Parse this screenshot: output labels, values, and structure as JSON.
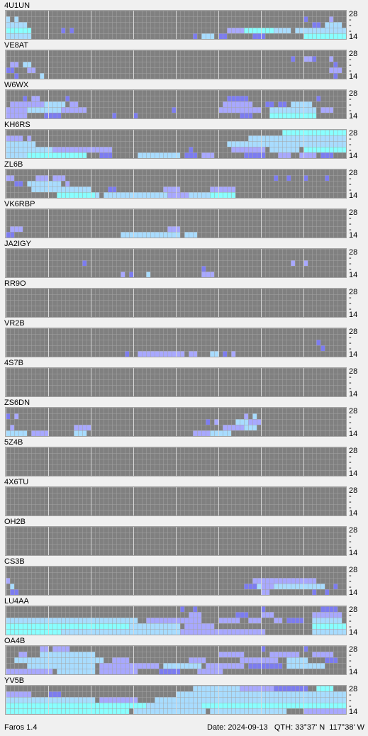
{
  "panels": [
    {
      "name": "4U1UN",
      "runs": [
        [
          1,
          0,
          0,
          3
        ],
        [
          1,
          2,
          2,
          3
        ],
        [
          2,
          0,
          4,
          3
        ],
        [
          3,
          0,
          5,
          4
        ],
        [
          4,
          0,
          5,
          3
        ],
        [
          3,
          13,
          13,
          1
        ],
        [
          3,
          15,
          15,
          1
        ],
        [
          4,
          44,
          44,
          1
        ],
        [
          4,
          46,
          48,
          3
        ],
        [
          4,
          50,
          51,
          1
        ],
        [
          3,
          52,
          55,
          2
        ],
        [
          3,
          56,
          62,
          4
        ],
        [
          3,
          63,
          66,
          3
        ],
        [
          4,
          58,
          60,
          1
        ],
        [
          3,
          68,
          79,
          3
        ],
        [
          4,
          70,
          79,
          4
        ],
        [
          2,
          72,
          73,
          1
        ],
        [
          2,
          75,
          78,
          3
        ],
        [
          1,
          70,
          70,
          1
        ],
        [
          1,
          76,
          76,
          2
        ]
      ]
    },
    {
      "name": "VE8AT",
      "runs": [
        [
          2,
          1,
          2,
          2
        ],
        [
          2,
          4,
          5,
          3
        ],
        [
          3,
          0,
          1,
          1
        ],
        [
          3,
          5,
          6,
          2
        ],
        [
          4,
          2,
          2,
          1
        ],
        [
          4,
          8,
          8,
          3
        ],
        [
          1,
          67,
          67,
          1
        ],
        [
          1,
          70,
          71,
          2
        ],
        [
          1,
          72,
          72,
          1
        ],
        [
          1,
          76,
          76,
          2
        ],
        [
          2,
          77,
          77,
          1
        ],
        [
          3,
          76,
          78,
          2
        ],
        [
          4,
          77,
          77,
          1
        ]
      ]
    },
    {
      "name": "W6WX",
      "runs": [
        [
          1,
          4,
          4,
          1
        ],
        [
          1,
          6,
          7,
          2
        ],
        [
          2,
          1,
          8,
          2
        ],
        [
          2,
          9,
          13,
          3
        ],
        [
          3,
          0,
          18,
          2
        ],
        [
          3,
          5,
          12,
          3
        ],
        [
          4,
          0,
          4,
          2
        ],
        [
          4,
          9,
          12,
          1
        ],
        [
          1,
          14,
          14,
          1
        ],
        [
          2,
          15,
          16,
          2
        ],
        [
          4,
          25,
          25,
          1
        ],
        [
          4,
          30,
          30,
          1
        ],
        [
          3,
          39,
          39,
          1
        ],
        [
          1,
          52,
          56,
          1
        ],
        [
          2,
          51,
          57,
          2
        ],
        [
          3,
          50,
          59,
          2
        ],
        [
          4,
          55,
          57,
          1
        ],
        [
          2,
          61,
          62,
          1
        ],
        [
          2,
          64,
          65,
          1
        ],
        [
          2,
          67,
          71,
          3
        ],
        [
          3,
          62,
          72,
          3
        ],
        [
          4,
          62,
          72,
          4
        ],
        [
          3,
          74,
          76,
          2
        ],
        [
          1,
          73,
          73,
          1
        ]
      ]
    },
    {
      "name": "KH6RS",
      "runs": [
        [
          1,
          0,
          3,
          2
        ],
        [
          1,
          5,
          5,
          2
        ],
        [
          2,
          0,
          6,
          3
        ],
        [
          3,
          0,
          10,
          3
        ],
        [
          3,
          11,
          24,
          2
        ],
        [
          4,
          5,
          18,
          4
        ],
        [
          4,
          0,
          4,
          3
        ],
        [
          4,
          22,
          24,
          1
        ],
        [
          4,
          31,
          40,
          3
        ],
        [
          4,
          42,
          44,
          1
        ],
        [
          3,
          43,
          43,
          1
        ],
        [
          4,
          46,
          48,
          2
        ],
        [
          0,
          65,
          79,
          4
        ],
        [
          1,
          57,
          79,
          3
        ],
        [
          2,
          52,
          79,
          3
        ],
        [
          3,
          53,
          60,
          2
        ],
        [
          3,
          62,
          68,
          3
        ],
        [
          3,
          70,
          79,
          4
        ],
        [
          4,
          56,
          60,
          1
        ],
        [
          4,
          64,
          66,
          2
        ],
        [
          4,
          69,
          72,
          2
        ],
        [
          4,
          74,
          76,
          1
        ]
      ]
    },
    {
      "name": "ZL6B",
      "runs": [
        [
          1,
          0,
          1,
          2
        ],
        [
          1,
          7,
          9,
          2
        ],
        [
          1,
          11,
          13,
          2
        ],
        [
          2,
          2,
          3,
          1
        ],
        [
          2,
          5,
          12,
          3
        ],
        [
          2,
          14,
          14,
          2
        ],
        [
          3,
          6,
          19,
          3
        ],
        [
          4,
          12,
          20,
          4
        ],
        [
          4,
          21,
          21,
          3
        ],
        [
          4,
          23,
          47,
          3
        ],
        [
          3,
          24,
          25,
          1
        ],
        [
          3,
          37,
          40,
          2
        ],
        [
          4,
          38,
          42,
          2
        ],
        [
          3,
          48,
          53,
          2
        ],
        [
          4,
          48,
          53,
          4
        ],
        [
          1,
          63,
          63,
          1
        ],
        [
          1,
          66,
          66,
          1
        ],
        [
          1,
          70,
          70,
          1
        ],
        [
          1,
          75,
          75,
          1
        ]
      ]
    },
    {
      "name": "VK6RBP",
      "runs": [
        [
          3,
          1,
          3,
          2
        ],
        [
          4,
          0,
          1,
          1
        ],
        [
          4,
          27,
          30,
          3
        ],
        [
          4,
          31,
          40,
          3
        ],
        [
          3,
          38,
          40,
          2
        ],
        [
          4,
          42,
          44,
          3
        ]
      ]
    },
    {
      "name": "JA2IGY",
      "runs": [
        [
          2,
          18,
          18,
          1
        ],
        [
          4,
          27,
          27,
          2
        ],
        [
          4,
          29,
          29,
          1
        ],
        [
          4,
          33,
          33,
          3
        ],
        [
          4,
          46,
          48,
          2
        ],
        [
          3,
          46,
          46,
          1
        ],
        [
          2,
          67,
          67,
          2
        ],
        [
          2,
          70,
          70,
          2
        ]
      ]
    },
    {
      "name": "RR9O",
      "runs": []
    },
    {
      "name": "VR2B",
      "runs": [
        [
          4,
          28,
          28,
          1
        ],
        [
          4,
          31,
          41,
          2
        ],
        [
          4,
          43,
          44,
          2
        ],
        [
          4,
          48,
          49,
          3
        ],
        [
          4,
          51,
          51,
          1
        ],
        [
          4,
          53,
          53,
          2
        ],
        [
          2,
          73,
          73,
          1
        ],
        [
          3,
          74,
          74,
          1
        ]
      ]
    },
    {
      "name": "4S7B",
      "runs": []
    },
    {
      "name": "ZS6DN",
      "runs": [
        [
          1,
          56,
          56,
          2
        ],
        [
          1,
          58,
          58,
          3
        ],
        [
          2,
          54,
          56,
          3
        ],
        [
          2,
          57,
          59,
          2
        ],
        [
          3,
          51,
          55,
          2
        ],
        [
          3,
          56,
          58,
          3
        ],
        [
          4,
          44,
          50,
          2
        ],
        [
          4,
          48,
          52,
          3
        ],
        [
          2,
          47,
          47,
          1
        ],
        [
          2,
          49,
          49,
          2
        ],
        [
          3,
          16,
          19,
          2
        ],
        [
          4,
          16,
          18,
          3
        ],
        [
          4,
          0,
          4,
          3
        ],
        [
          4,
          6,
          9,
          2
        ],
        [
          3,
          1,
          1,
          2
        ],
        [
          1,
          0,
          0,
          1
        ],
        [
          1,
          2,
          2,
          2
        ]
      ]
    },
    {
      "name": "5Z4B",
      "runs": []
    },
    {
      "name": "4X6TU",
      "runs": []
    },
    {
      "name": "OH2B",
      "runs": []
    },
    {
      "name": "CS3B",
      "runs": [
        [
          3,
          56,
          58,
          1
        ],
        [
          3,
          59,
          74,
          3
        ],
        [
          2,
          58,
          72,
          2
        ],
        [
          3,
          60,
          62,
          2
        ],
        [
          4,
          60,
          61,
          2
        ],
        [
          4,
          75,
          75,
          1
        ],
        [
          4,
          72,
          72,
          1
        ],
        [
          3,
          77,
          77,
          1
        ],
        [
          2,
          0,
          0,
          2
        ],
        [
          3,
          1,
          1,
          3
        ],
        [
          4,
          1,
          2,
          1
        ]
      ]
    },
    {
      "name": "LU4AA",
      "runs": [
        [
          0,
          41,
          41,
          1
        ],
        [
          0,
          44,
          44,
          1
        ],
        [
          0,
          60,
          60,
          1
        ],
        [
          0,
          74,
          77,
          1
        ],
        [
          1,
          43,
          45,
          2
        ],
        [
          1,
          54,
          56,
          1
        ],
        [
          1,
          60,
          62,
          2
        ],
        [
          1,
          72,
          78,
          2
        ],
        [
          2,
          0,
          30,
          3
        ],
        [
          2,
          33,
          45,
          2
        ],
        [
          2,
          50,
          54,
          2
        ],
        [
          2,
          57,
          59,
          2
        ],
        [
          2,
          63,
          64,
          2
        ],
        [
          2,
          66,
          69,
          1
        ],
        [
          2,
          72,
          78,
          3
        ],
        [
          3,
          0,
          28,
          4
        ],
        [
          3,
          29,
          40,
          3
        ],
        [
          3,
          42,
          48,
          2
        ],
        [
          3,
          72,
          79,
          4
        ],
        [
          4,
          0,
          12,
          4
        ],
        [
          4,
          13,
          40,
          3
        ],
        [
          4,
          41,
          60,
          2
        ],
        [
          4,
          72,
          79,
          3
        ]
      ]
    },
    {
      "name": "OA4B",
      "runs": [
        [
          0,
          8,
          9,
          2
        ],
        [
          0,
          11,
          14,
          2
        ],
        [
          0,
          60,
          60,
          1
        ],
        [
          0,
          70,
          70,
          1
        ],
        [
          1,
          3,
          4,
          2
        ],
        [
          1,
          8,
          20,
          3
        ],
        [
          1,
          50,
          55,
          2
        ],
        [
          1,
          62,
          68,
          2
        ],
        [
          1,
          72,
          76,
          2
        ],
        [
          2,
          2,
          22,
          3
        ],
        [
          2,
          25,
          28,
          2
        ],
        [
          2,
          43,
          46,
          2
        ],
        [
          2,
          55,
          63,
          2
        ],
        [
          2,
          66,
          70,
          3
        ],
        [
          2,
          75,
          77,
          1
        ],
        [
          3,
          5,
          20,
          3
        ],
        [
          3,
          22,
          35,
          2
        ],
        [
          3,
          37,
          45,
          3
        ],
        [
          3,
          47,
          55,
          2
        ],
        [
          3,
          57,
          64,
          1
        ],
        [
          3,
          66,
          74,
          3
        ],
        [
          4,
          0,
          10,
          2
        ],
        [
          4,
          12,
          20,
          3
        ],
        [
          4,
          22,
          30,
          2
        ],
        [
          4,
          36,
          40,
          1
        ],
        [
          4,
          45,
          50,
          2
        ]
      ]
    },
    {
      "name": "YV5B",
      "runs": [
        [
          0,
          44,
          54,
          3
        ],
        [
          0,
          55,
          62,
          2
        ],
        [
          0,
          63,
          70,
          1
        ],
        [
          0,
          73,
          76,
          4
        ],
        [
          1,
          0,
          5,
          2
        ],
        [
          1,
          10,
          12,
          1
        ],
        [
          1,
          40,
          79,
          3
        ],
        [
          2,
          0,
          20,
          3
        ],
        [
          2,
          22,
          30,
          2
        ],
        [
          2,
          35,
          79,
          3
        ],
        [
          3,
          0,
          32,
          4
        ],
        [
          3,
          33,
          45,
          3
        ],
        [
          3,
          46,
          79,
          4
        ],
        [
          4,
          0,
          28,
          4
        ],
        [
          4,
          30,
          46,
          3
        ],
        [
          4,
          48,
          65,
          3
        ],
        [
          4,
          70,
          79,
          2
        ]
      ]
    }
  ],
  "band_labels": [
    "28",
    "-",
    "-",
    "-",
    "14"
  ],
  "level_colors": [
    "#808080",
    "#7c7cf0",
    "#a8a8ff",
    "#a8dcff",
    "#88ffff"
  ],
  "footer": {
    "app": "Faros 1.4",
    "date": "Date: 2024-09-13",
    "qth": "QTH: 33°37' N  117°38' W"
  }
}
